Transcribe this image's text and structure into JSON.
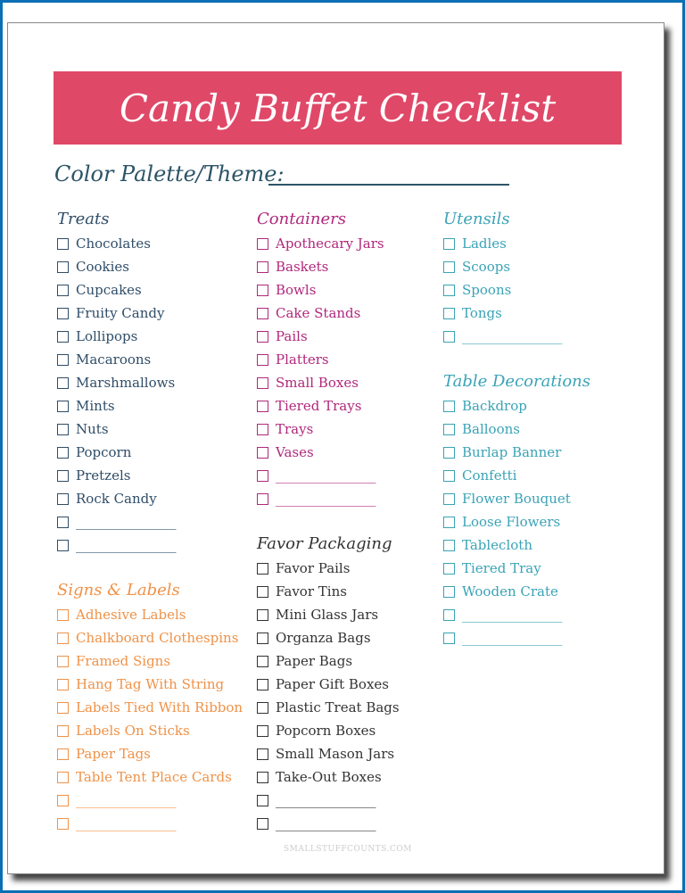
{
  "title": "Candy Buffet Checklist",
  "theme_label": "Color Palette/Theme:",
  "footer": "SMALLSTUFFCOUNTS.COM",
  "colors": {
    "title_bar": "#e04868",
    "treats": "#2f4d68",
    "containers": "#b0287c",
    "utensils": "#3aa3b6",
    "signs": "#ef9248",
    "favor": "#333333"
  },
  "sections": [
    {
      "title": "Treats",
      "items": [
        "Chocolates",
        "Cookies",
        "Cupcakes",
        "Fruity Candy",
        "Lollipops",
        "Macaroons",
        "Marshmallows",
        "Mints",
        "Nuts",
        "Popcorn",
        "Pretzels",
        "Rock Candy",
        "_______________",
        "_______________"
      ]
    },
    {
      "title": "Signs & Labels",
      "items": [
        "Adhesive Labels",
        "Chalkboard Clothespins",
        "Framed Signs",
        "Hang Tag With String",
        "Labels Tied With Ribbon",
        "Labels On Sticks",
        "Paper Tags",
        "Table Tent Place Cards",
        "_______________",
        "_______________"
      ]
    },
    {
      "title": "Containers",
      "items": [
        "Apothecary Jars",
        "Baskets",
        "Bowls",
        "Cake Stands",
        "Pails",
        "Platters",
        "Small Boxes",
        "Tiered Trays",
        "Trays",
        "Vases",
        "_______________",
        "_______________"
      ]
    },
    {
      "title": "Favor Packaging",
      "items": [
        "Favor Pails",
        "Favor Tins",
        "Mini Glass Jars",
        "Organza Bags",
        "Paper Bags",
        "Paper Gift Boxes",
        "Plastic Treat Bags",
        "Popcorn Boxes",
        "Small Mason Jars",
        "Take-Out Boxes",
        "_______________",
        "_______________"
      ]
    },
    {
      "title": "Utensils",
      "items": [
        "Ladles",
        "Scoops",
        "Spoons",
        "Tongs",
        "_______________"
      ]
    },
    {
      "title": "Table Decorations",
      "items": [
        "Backdrop",
        "Balloons",
        "Burlap Banner",
        "Confetti",
        "Flower Bouquet",
        "Loose Flowers",
        "Tablecloth",
        "Tiered Tray",
        "Wooden Crate",
        "_______________",
        "_______________"
      ]
    }
  ]
}
